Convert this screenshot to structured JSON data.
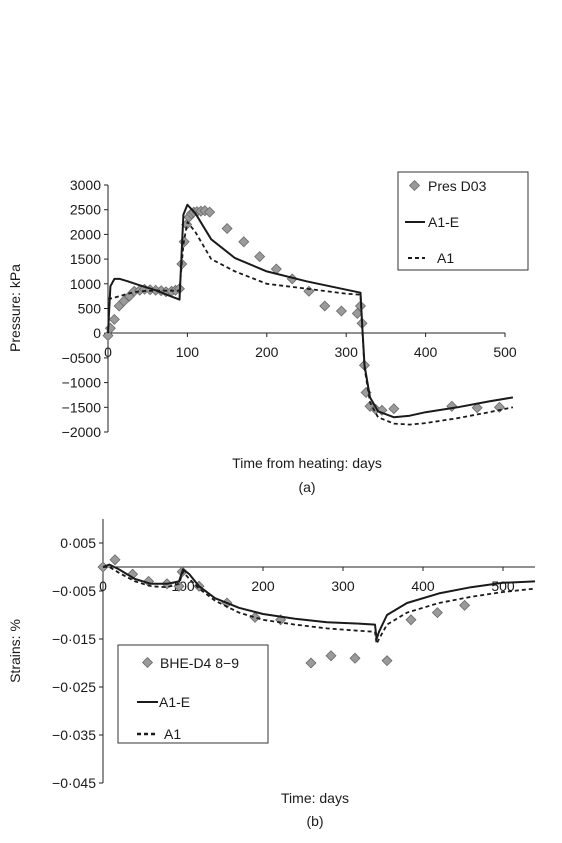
{
  "chart_data": [
    {
      "type": "line",
      "xlabel": "Time from heating: days",
      "ylabel": "Pressure: kPa",
      "caption": "(a)",
      "xlim": [
        0,
        500
      ],
      "ylim": [
        -2000,
        3000
      ],
      "xticks": [
        "0",
        "100",
        "200",
        "300",
        "400",
        "500"
      ],
      "yticks": [
        "3000",
        "2500",
        "2000",
        "1500",
        "1000",
        "500",
        "0",
        "−0500",
        "−1000",
        "−1500",
        "−2000"
      ],
      "legend_position": "top-right",
      "series": [
        {
          "name": "Pres D03",
          "style": "markers",
          "x": [
            0,
            3,
            8,
            14,
            20,
            27,
            33,
            40,
            46,
            53,
            60,
            67,
            73,
            80,
            85,
            90,
            93,
            96,
            99,
            102,
            105,
            108,
            112,
            117,
            122,
            128,
            150,
            171,
            191,
            212,
            232,
            253,
            273,
            294,
            314,
            318,
            320,
            323,
            325,
            330,
            337,
            345,
            360,
            433,
            465,
            493
          ],
          "y": [
            -50,
            100,
            280,
            550,
            650,
            750,
            850,
            870,
            890,
            880,
            870,
            860,
            840,
            850,
            870,
            900,
            1400,
            1850,
            2200,
            2350,
            2420,
            2450,
            2460,
            2470,
            2480,
            2450,
            2120,
            1850,
            1550,
            1300,
            1100,
            850,
            550,
            450,
            400,
            550,
            200,
            -650,
            -1200,
            -1480,
            -1540,
            -1560,
            -1530,
            -1480,
            -1510,
            -1500
          ]
        },
        {
          "name": "A1-E",
          "style": "solid",
          "x": [
            0,
            3,
            8,
            15,
            25,
            40,
            60,
            80,
            90,
            95,
            100,
            110,
            130,
            160,
            200,
            250,
            300,
            318,
            320,
            323,
            330,
            340,
            360,
            380,
            400,
            440,
            480,
            510
          ],
          "y": [
            0,
            950,
            1100,
            1100,
            1050,
            970,
            870,
            740,
            680,
            2400,
            2600,
            2430,
            1900,
            1520,
            1250,
            1050,
            880,
            820,
            200,
            -650,
            -1300,
            -1580,
            -1700,
            -1670,
            -1600,
            -1500,
            -1380,
            -1300
          ]
        },
        {
          "name": "A1",
          "style": "dashed",
          "x": [
            0,
            3,
            8,
            15,
            25,
            40,
            60,
            80,
            90,
            95,
            100,
            110,
            130,
            160,
            200,
            250,
            300,
            318,
            320,
            323,
            330,
            340,
            360,
            380,
            400,
            440,
            480,
            510
          ],
          "y": [
            700,
            700,
            720,
            750,
            800,
            850,
            860,
            860,
            860,
            1800,
            2250,
            2050,
            1500,
            1250,
            1000,
            900,
            800,
            780,
            150,
            -700,
            -1400,
            -1700,
            -1830,
            -1850,
            -1820,
            -1720,
            -1600,
            -1500
          ]
        }
      ]
    },
    {
      "type": "line",
      "xlabel": "Time: days",
      "ylabel": "Strains: %",
      "caption": "(b)",
      "xlim": [
        0,
        540
      ],
      "ylim": [
        -0.045,
        0.01
      ],
      "xticks": [
        "0",
        "100",
        "200",
        "300",
        "400",
        "500"
      ],
      "yticks": [
        "0·005",
        "−0·005",
        "−0·015",
        "−0·025",
        "−0·035",
        "−0·045"
      ],
      "legend_position": "bottom-left",
      "series": [
        {
          "name": "BHE-D4 8−9",
          "style": "markers",
          "x": [
            0,
            15,
            37,
            57,
            80,
            95,
            99,
            120,
            155,
            190,
            222,
            260,
            285,
            315,
            355,
            385,
            418,
            452
          ],
          "y": [
            0.0,
            0.0015,
            -0.0015,
            -0.003,
            -0.0035,
            -0.004,
            -0.001,
            -0.004,
            -0.0075,
            -0.0105,
            -0.011,
            -0.02,
            -0.0185,
            -0.019,
            -0.0195,
            -0.011,
            -0.0095,
            -0.008
          ]
        },
        {
          "name": "A1-E",
          "style": "solid",
          "x": [
            0,
            8,
            20,
            40,
            60,
            80,
            95,
            100,
            108,
            120,
            140,
            170,
            200,
            240,
            280,
            320,
            340,
            342,
            345,
            355,
            380,
            420,
            460,
            500,
            540
          ],
          "y": [
            0,
            0.0005,
            -0.0005,
            -0.0025,
            -0.0035,
            -0.0035,
            -0.003,
            -0.0005,
            -0.0015,
            -0.004,
            -0.0065,
            -0.0085,
            -0.0098,
            -0.0108,
            -0.0115,
            -0.0118,
            -0.012,
            -0.015,
            -0.0135,
            -0.01,
            -0.0075,
            -0.0055,
            -0.0042,
            -0.0033,
            -0.003
          ]
        },
        {
          "name": "A1",
          "style": "dashed",
          "x": [
            0,
            8,
            20,
            40,
            60,
            80,
            95,
            100,
            108,
            120,
            140,
            170,
            200,
            240,
            280,
            320,
            340,
            342,
            345,
            355,
            380,
            420,
            460,
            500,
            540
          ],
          "y": [
            0,
            0,
            -0.0012,
            -0.003,
            -0.004,
            -0.0042,
            -0.0035,
            -0.001,
            -0.0025,
            -0.0045,
            -0.007,
            -0.0095,
            -0.011,
            -0.012,
            -0.0128,
            -0.0133,
            -0.0135,
            -0.016,
            -0.015,
            -0.012,
            -0.0095,
            -0.0075,
            -0.0062,
            -0.0052,
            -0.0045
          ]
        }
      ]
    }
  ]
}
